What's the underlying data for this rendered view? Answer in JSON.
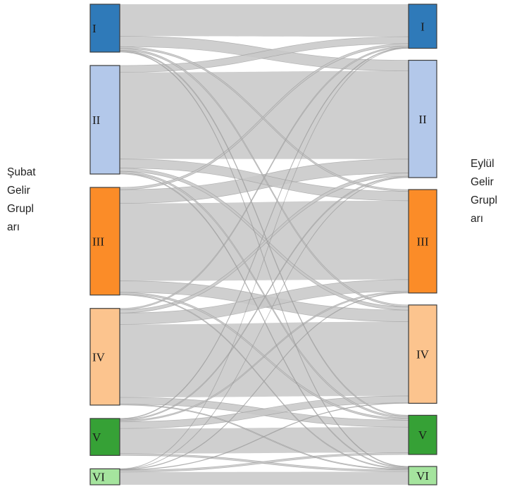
{
  "left_axis_label": [
    "Şubat",
    "Gelir",
    "Grupl",
    "arı"
  ],
  "right_axis_label": [
    "Eylül",
    "Gelir",
    "Grupl",
    "arı"
  ],
  "nodes": [
    "I",
    "II",
    "III",
    "IV",
    "V",
    "VI"
  ],
  "colors": {
    "I": "#2f7ab9",
    "II": "#b3c8ea",
    "III": "#fb8c28",
    "IV": "#fcc48e",
    "V": "#36a136",
    "VI": "#a5e49e",
    "link": "#c8c8c8"
  },
  "flows": [
    [
      "I",
      "I",
      7
    ],
    [
      "I",
      "II",
      2.3
    ],
    [
      "I",
      "III",
      0.4
    ],
    [
      "I",
      "IV",
      0.4
    ],
    [
      "I",
      "V",
      0.25
    ],
    [
      "I",
      "VI",
      0.15
    ],
    [
      "II",
      "I",
      1.5
    ],
    [
      "II",
      "II",
      19
    ],
    [
      "II",
      "III",
      2
    ],
    [
      "II",
      "IV",
      0.7
    ],
    [
      "II",
      "V",
      0.4
    ],
    [
      "II",
      "VI",
      0.2
    ],
    [
      "III",
      "I",
      0.5
    ],
    [
      "III",
      "II",
      3
    ],
    [
      "III",
      "III",
      17
    ],
    [
      "III",
      "IV",
      2.5
    ],
    [
      "III",
      "V",
      0.4
    ],
    [
      "III",
      "VI",
      0.2
    ],
    [
      "IV",
      "I",
      0.3
    ],
    [
      "IV",
      "II",
      0.7
    ],
    [
      "IV",
      "III",
      2.5
    ],
    [
      "IV",
      "IV",
      16
    ],
    [
      "IV",
      "V",
      1.5
    ],
    [
      "IV",
      "VI",
      0.2
    ],
    [
      "V",
      "I",
      0.15
    ],
    [
      "V",
      "II",
      0.25
    ],
    [
      "V",
      "III",
      0.3
    ],
    [
      "V",
      "IV",
      1.5
    ],
    [
      "V",
      "V",
      5.5
    ],
    [
      "V",
      "VI",
      0.4
    ],
    [
      "VI",
      "I",
      0.05
    ],
    [
      "VI",
      "II",
      0.05
    ],
    [
      "VI",
      "III",
      0.1
    ],
    [
      "VI",
      "IV",
      0.1
    ],
    [
      "VI",
      "V",
      0.4
    ],
    [
      "VI",
      "VI",
      2.8
    ]
  ]
}
